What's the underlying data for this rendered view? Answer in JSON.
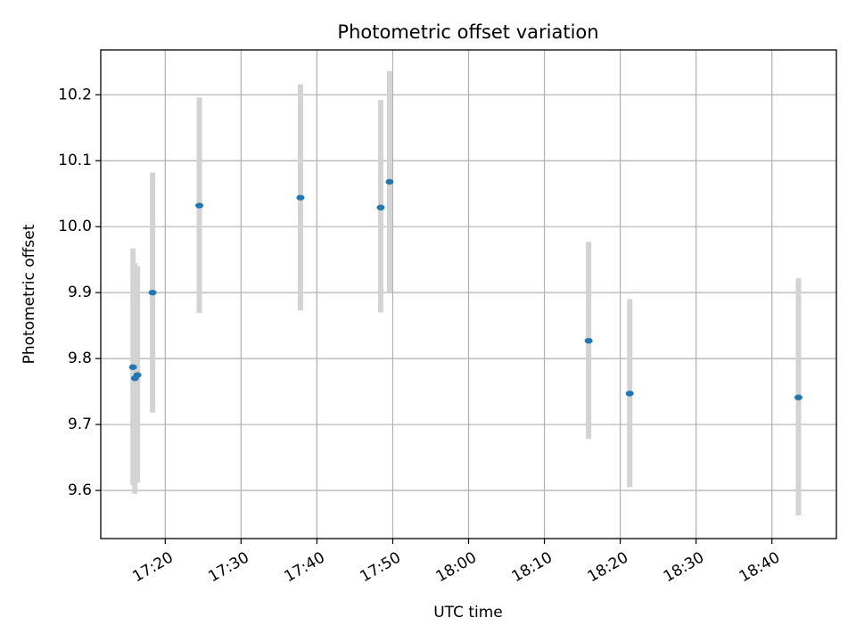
{
  "chart_data": {
    "type": "scatter",
    "title": "Photometric offset variation",
    "xlabel": "UTC time",
    "ylabel": "Photometric offset",
    "xlim": [
      "17:11:30",
      "18:48:30"
    ],
    "ylim": [
      9.527,
      10.268
    ],
    "x_ticks": [
      "17:20",
      "17:30",
      "17:40",
      "17:50",
      "18:00",
      "18:10",
      "18:20",
      "18:30",
      "18:40"
    ],
    "y_ticks": [
      "9.6",
      "9.7",
      "9.8",
      "9.9",
      "10.0",
      "10.1",
      "10.2"
    ],
    "grid": true,
    "series": [
      {
        "marker_color": "#1f77b4",
        "errorbar_color": "#d3d3d3",
        "points": [
          {
            "x": "17:15:45",
            "y": 9.787,
            "lower": 9.608,
            "upper": 9.967
          },
          {
            "x": "17:16:00",
            "y": 9.77,
            "lower": 9.595,
            "upper": 9.945
          },
          {
            "x": "17:16:20",
            "y": 9.775,
            "lower": 9.612,
            "upper": 9.94
          },
          {
            "x": "17:18:20",
            "y": 9.9,
            "lower": 9.718,
            "upper": 10.082
          },
          {
            "x": "17:24:30",
            "y": 10.032,
            "lower": 9.869,
            "upper": 10.196
          },
          {
            "x": "17:37:50",
            "y": 10.044,
            "lower": 9.873,
            "upper": 10.216
          },
          {
            "x": "17:48:25",
            "y": 10.029,
            "lower": 9.87,
            "upper": 10.192
          },
          {
            "x": "17:49:35",
            "y": 10.068,
            "lower": 9.9,
            "upper": 10.236
          },
          {
            "x": "18:15:50",
            "y": 9.827,
            "lower": 9.678,
            "upper": 9.977
          },
          {
            "x": "18:21:15",
            "y": 9.747,
            "lower": 9.605,
            "upper": 9.89
          },
          {
            "x": "18:43:30",
            "y": 9.741,
            "lower": 9.562,
            "upper": 9.922
          }
        ]
      }
    ]
  }
}
